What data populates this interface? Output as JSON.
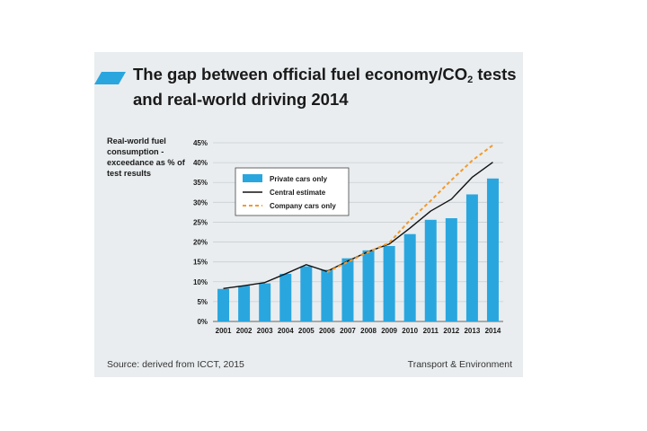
{
  "header": {
    "title_part1": "The gap between official fuel economy/CO",
    "title_sub": "2",
    "title_part2": " tests",
    "title_line2": "and real-world driving 2014"
  },
  "footer": {
    "source": "Source: derived from ICCT, 2015",
    "credit": "Transport & Environment"
  },
  "colors": {
    "accent": "#2aa6df",
    "bar": "#2aa6df",
    "central": "#111111",
    "company": "#f39a2d",
    "panel": "#e9edef"
  },
  "chart_data": {
    "type": "bar",
    "ylabel": "Real-world fuel consumption - exceedance as % of test results",
    "ylim": [
      0,
      45
    ],
    "yticks": [
      "0%",
      "5%",
      "10%",
      "15%",
      "20%",
      "25%",
      "30%",
      "35%",
      "40%",
      "45%"
    ],
    "grid": true,
    "legend_position": "top-left",
    "categories": [
      "2001",
      "2002",
      "2003",
      "2004",
      "2005",
      "2006",
      "2007",
      "2008",
      "2009",
      "2010",
      "2011",
      "2012",
      "2013",
      "2014"
    ],
    "series": [
      {
        "name": "Private cars only",
        "kind": "bar",
        "values": [
          8.2,
          9.0,
          9.6,
          12.0,
          13.9,
          13.0,
          15.9,
          17.9,
          19.0,
          22.0,
          25.6,
          26.0,
          32.0,
          36.0
        ]
      },
      {
        "name": "Central estimate",
        "kind": "line",
        "values": [
          8.3,
          9.0,
          9.8,
          12.0,
          14.3,
          12.6,
          15.2,
          17.6,
          19.5,
          23.5,
          27.8,
          30.8,
          36.3,
          40.1
        ]
      },
      {
        "name": "Company cars only",
        "kind": "dashed-line",
        "values": [
          null,
          null,
          null,
          null,
          null,
          12.4,
          15.0,
          17.5,
          19.8,
          25.5,
          30.4,
          35.6,
          40.5,
          44.4
        ]
      }
    ]
  }
}
